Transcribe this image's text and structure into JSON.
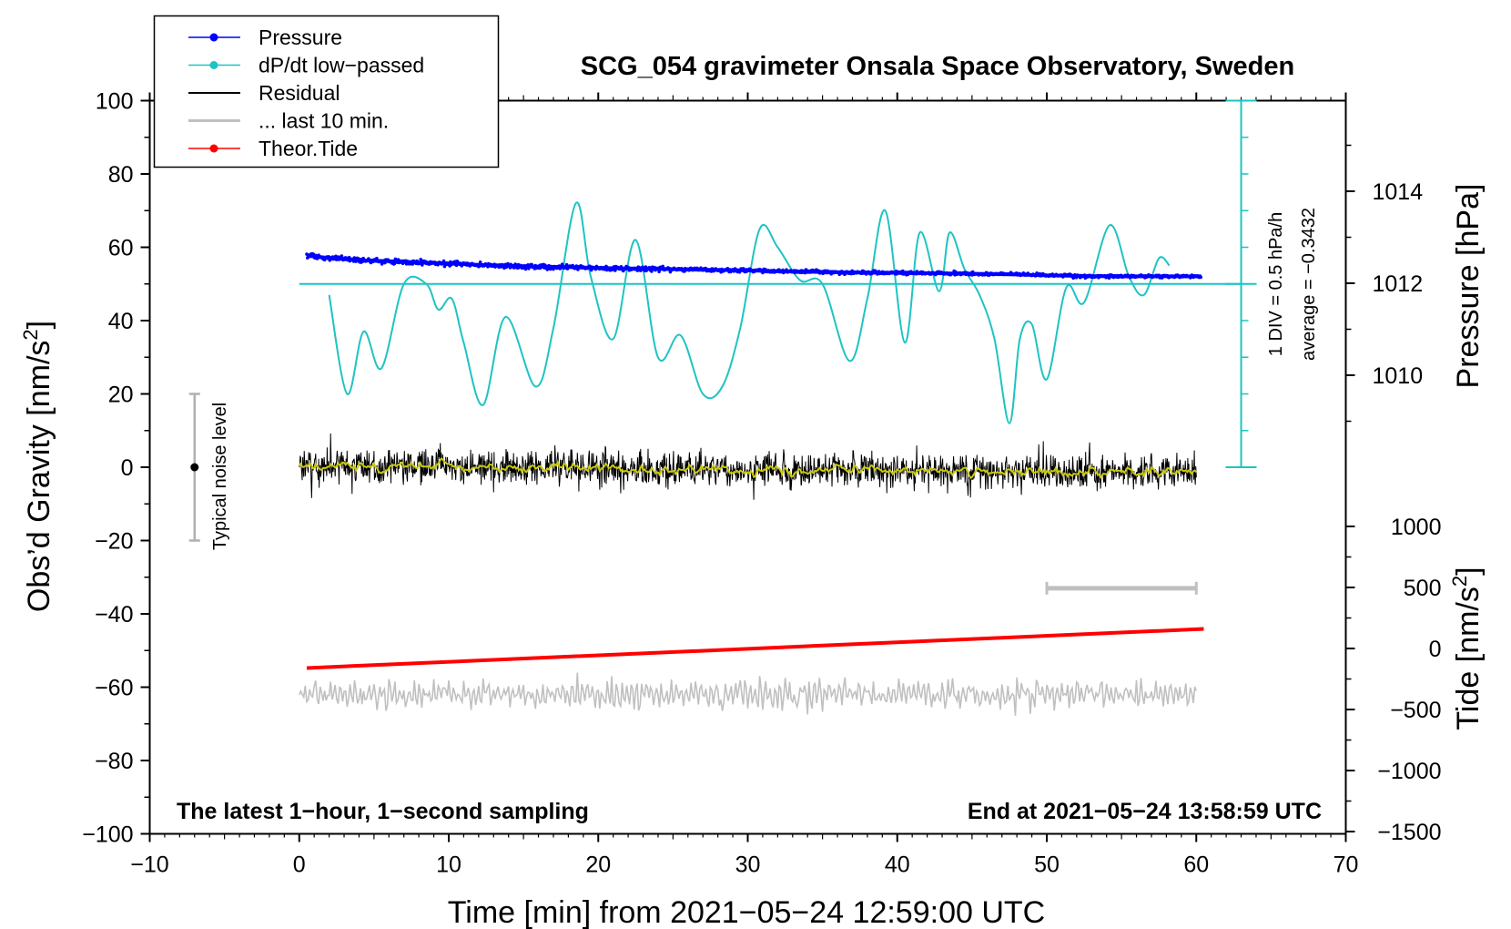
{
  "chart_data": {
    "type": "line",
    "title": "SCG_054 gravimeter Onsala Space Observatory, Sweden",
    "xlabel_prefix": "Time [min] from 2021",
    "xlabel_date": "05",
    "xlabel_day": "24",
    "xlabel_time": "12:59:00 UTC",
    "xlim": [
      -10,
      70
    ],
    "xticks": [
      -10,
      0,
      10,
      20,
      30,
      40,
      50,
      60,
      70
    ],
    "ylabel_left_main": "Obs’d Gravity [nm/s",
    "ylabel_left_sup": "2",
    "ylabel_left_tail": "]",
    "ylim_left": [
      -100,
      100
    ],
    "yticks_left": [
      -100,
      -80,
      -60,
      -40,
      -20,
      0,
      20,
      40,
      60,
      80,
      100
    ],
    "ylabel_pressure": "Pressure [hPa]",
    "pressure_ticks": [
      1010,
      1012,
      1014
    ],
    "ylabel_tide_main": "Tide [nm/s",
    "ylabel_tide_sup": "2",
    "ylabel_tide_tail": "]",
    "tide_ticks": [
      -1500,
      -1000,
      -500,
      0,
      500,
      1000
    ],
    "note_left": "The latest 1−hour, 1−second sampling",
    "note_right_prefix": "End at 2021",
    "note_right_date": "05",
    "note_right_day": "24",
    "note_right_time": "13:58:59 UTC",
    "noise_label": "Typical noise level",
    "noise_range": [
      -20,
      20
    ],
    "noise_x": -7,
    "div_label": "1 DIV = 0.5 hPa/h",
    "average_label": "average = −0.3432",
    "average_value": -0.3432,
    "legend": [
      {
        "label": "Pressure",
        "color": "#0000ff",
        "marker": true
      },
      {
        "label": "dP/dt low−passed",
        "color": "#1fc3c3",
        "marker": true
      },
      {
        "label": "Residual",
        "color": "#000000",
        "marker": false
      },
      {
        "label": "... last 10 min.",
        "color": "#c0c0c0",
        "marker": false
      },
      {
        "label": "Theor.Tide",
        "color": "#ff0000",
        "marker": true
      }
    ],
    "last10_bar": [
      50,
      60
    ],
    "last10_level": -33,
    "series": [
      {
        "name": "Pressure",
        "axis": "pressure",
        "color": "#0000ff",
        "x": [
          0.5,
          2,
          4,
          6,
          8,
          10,
          12,
          14,
          16,
          18,
          20,
          22,
          24,
          26,
          28,
          30,
          32,
          34,
          36,
          38,
          40,
          42,
          44,
          46,
          48,
          50,
          52,
          54,
          56,
          58,
          60
        ],
        "values": [
          1012.6,
          1012.55,
          1012.5,
          1012.48,
          1012.45,
          1012.43,
          1012.4,
          1012.38,
          1012.36,
          1012.35,
          1012.33,
          1012.32,
          1012.31,
          1012.3,
          1012.29,
          1012.28,
          1012.26,
          1012.25,
          1012.24,
          1012.23,
          1012.23,
          1012.22,
          1012.21,
          1012.2,
          1012.19,
          1012.17,
          1012.16,
          1012.15,
          1012.15,
          1012.15,
          1012.15
        ]
      },
      {
        "name": "dP/dt low−passed",
        "axis": "left",
        "color": "#1fc3c3",
        "x": [
          2,
          3.2,
          4.3,
          5.5,
          7,
          8.5,
          9.3,
          10.2,
          11,
          12.3,
          13.8,
          15.8,
          17,
          18.5,
          19.5,
          21,
          22.5,
          24,
          25.5,
          27,
          28.3,
          29.5,
          30.8,
          32,
          33.5,
          35,
          36.8,
          38,
          39.2,
          40.5,
          41.5,
          42.8,
          43.5,
          44.5,
          45.5,
          46.5,
          47.5,
          48.2,
          49,
          50,
          51.3,
          52.5,
          54.2,
          55.5,
          56.5,
          57.5,
          58.2
        ],
        "values": [
          47,
          20,
          37,
          27,
          50,
          50,
          43,
          46,
          34,
          17,
          41,
          22,
          38,
          72,
          52,
          35,
          62,
          30,
          36,
          20,
          22,
          38,
          65,
          60,
          51,
          50,
          29,
          46,
          70,
          34,
          64,
          48,
          64,
          54,
          47,
          35,
          12,
          35,
          39,
          24,
          49,
          45,
          66,
          52,
          47,
          57,
          55
        ]
      },
      {
        "name": "Residual",
        "axis": "left",
        "color": "#000000",
        "x": [
          0,
          60
        ],
        "values": [
          0.5,
          -1.5
        ]
      },
      {
        "name": "... last 10 min.",
        "axis": "left",
        "color": "#c0c0c0",
        "x": [
          0,
          60
        ],
        "values": [
          -62,
          -62
        ]
      },
      {
        "name": "Theor.Tide",
        "axis": "tide",
        "color": "#ff0000",
        "x": [
          0.5,
          60.5
        ],
        "values": [
          -160,
          160
        ]
      }
    ]
  }
}
